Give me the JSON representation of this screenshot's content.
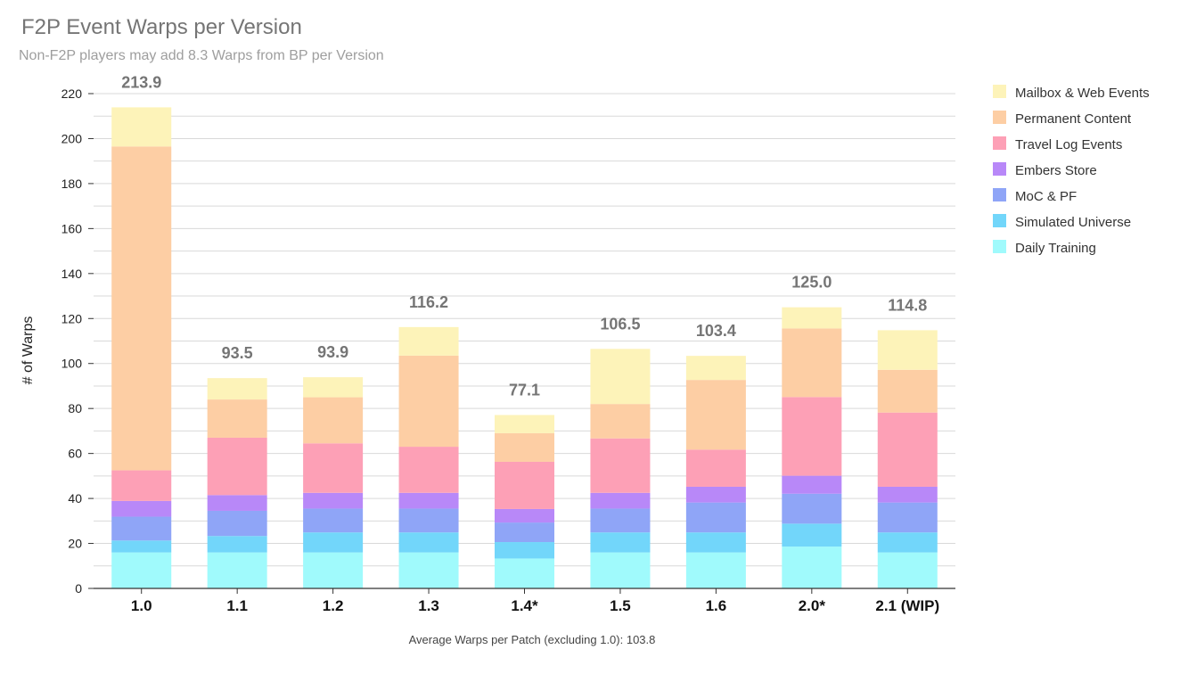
{
  "chart_data": {
    "type": "bar",
    "stacked": true,
    "title": "F2P Event Warps per Version",
    "subtitle": "Non-F2P players may add 8.3 Warps from BP per Version",
    "xlabel": "",
    "ylabel": "# of Warps",
    "footnote": "Average Warps per Patch (excluding 1.0): 103.8",
    "ylim": [
      0,
      220
    ],
    "yticks": [
      0,
      20,
      40,
      60,
      80,
      100,
      120,
      140,
      160,
      180,
      200,
      220
    ],
    "grid": true,
    "legend_position": "right",
    "categories": [
      "1.0",
      "1.1",
      "1.2",
      "1.3",
      "1.4*",
      "1.5",
      "1.6",
      "2.0*",
      "2.1 (WIP)"
    ],
    "totals": [
      "213.9",
      "93.5",
      "93.9",
      "116.2",
      "77.1",
      "106.5",
      "103.4",
      "125.0",
      "114.8"
    ],
    "series": [
      {
        "name": "Daily Training",
        "color": "#a0fafc",
        "values": [
          16,
          16,
          16,
          16,
          13.3,
          16,
          16,
          18.6,
          16
        ]
      },
      {
        "name": "Simulated Universe",
        "color": "#72d6fa",
        "values": [
          5.3,
          7.3,
          8.9,
          8.9,
          7.3,
          8.9,
          8.9,
          10.2,
          8.9
        ]
      },
      {
        "name": "MoC & PF",
        "color": "#8fa5f7",
        "values": [
          10.6,
          11.2,
          10.6,
          10.6,
          8.7,
          10.6,
          13.3,
          13.3,
          13.3
        ]
      },
      {
        "name": "Embers Store",
        "color": "#b888f8",
        "values": [
          7,
          7,
          7,
          7,
          6,
          7,
          7,
          8,
          7
        ]
      },
      {
        "name": "Travel Log Events",
        "color": "#fda0b6",
        "values": [
          13.6,
          25.5,
          22,
          20.5,
          21,
          24.2,
          16.5,
          35,
          33
        ]
      },
      {
        "name": "Permanent Content",
        "color": "#fdcea4",
        "values": [
          144,
          17,
          20.5,
          40.5,
          12.7,
          15.3,
          31,
          30.5,
          19
        ]
      },
      {
        "name": "Mailbox & Web Events",
        "color": "#fdf3b9",
        "values": [
          17.4,
          9.5,
          8.9,
          12.7,
          8.1,
          24.5,
          10.7,
          9.4,
          17.6
        ]
      }
    ]
  }
}
